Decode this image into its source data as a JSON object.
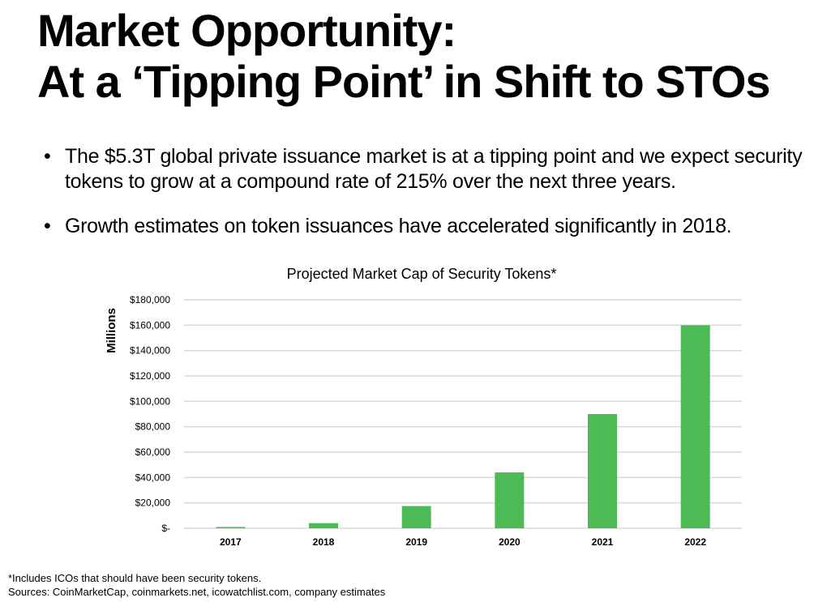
{
  "slide": {
    "title_line1": "Market Opportunity:",
    "title_line2": "At a ‘Tipping Point’ in Shift to STOs",
    "bullets": [
      "The $5.3T global private issuance market is at a tipping point and we expect security tokens to grow at a compound rate of 215% over the next three years.",
      "Growth estimates on token issuances have accelerated significantly in 2018."
    ],
    "footnote": "*Includes ICOs that should have been security tokens.",
    "sources": "Sources: CoinMarketCap, coinmarkets.net, icowatchlist.com, company estimates"
  },
  "chart_data": {
    "type": "bar",
    "title": "Projected Market Cap of Security Tokens*",
    "xlabel": "",
    "ylabel": "Millions",
    "categories": [
      "2017",
      "2018",
      "2019",
      "2020",
      "2021",
      "2022"
    ],
    "values": [
      1000,
      4000,
      17500,
      44000,
      90000,
      160000
    ],
    "ylim": [
      0,
      180000
    ],
    "yticks": [
      0,
      20000,
      40000,
      60000,
      80000,
      100000,
      120000,
      140000,
      160000,
      180000
    ],
    "ytick_labels": [
      "$-",
      "$20,000",
      "$40,000",
      "$60,000",
      "$80,000",
      "$100,000",
      "$120,000",
      "$140,000",
      "$160,000",
      "$180,000"
    ],
    "grid": true,
    "legend": "none",
    "bar_color": "#4cbb55",
    "grid_color": "#d9d9d9"
  }
}
